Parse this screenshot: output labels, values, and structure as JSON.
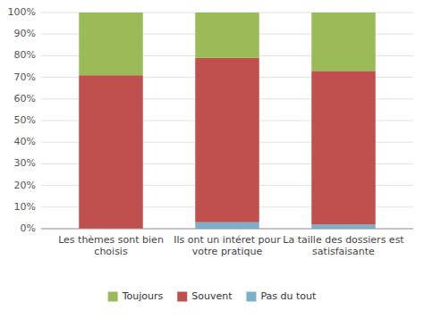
{
  "chart_data": {
    "type": "bar",
    "stacked": true,
    "categories": [
      "Les thèmes sont bien\nchoisis",
      "Ils ont un intéret pour\nvotre pratique",
      "La taille des dossiers est\nsatisfaisante"
    ],
    "series": [
      {
        "name": "Pas du tout",
        "color": "#7ab0cc",
        "values": [
          0,
          3,
          2
        ]
      },
      {
        "name": "Souvent",
        "color": "#c0504d",
        "values": [
          71,
          76,
          71
        ]
      },
      {
        "name": "Toujours",
        "color": "#9bbb59",
        "values": [
          29,
          21,
          27
        ]
      }
    ],
    "ylim": [
      0,
      100
    ],
    "yticks": [
      {
        "value": 0,
        "label": "0%"
      },
      {
        "value": 10,
        "label": "10%"
      },
      {
        "value": 20,
        "label": "20%"
      },
      {
        "value": 30,
        "label": "30%"
      },
      {
        "value": 40,
        "label": "40%"
      },
      {
        "value": 50,
        "label": "50%"
      },
      {
        "value": 60,
        "label": "60%"
      },
      {
        "value": 70,
        "label": "70%"
      },
      {
        "value": 80,
        "label": "80%"
      },
      {
        "value": 90,
        "label": "90%"
      },
      {
        "value": 100,
        "label": "100%"
      }
    ],
    "grid": true,
    "legend": "bottom"
  }
}
